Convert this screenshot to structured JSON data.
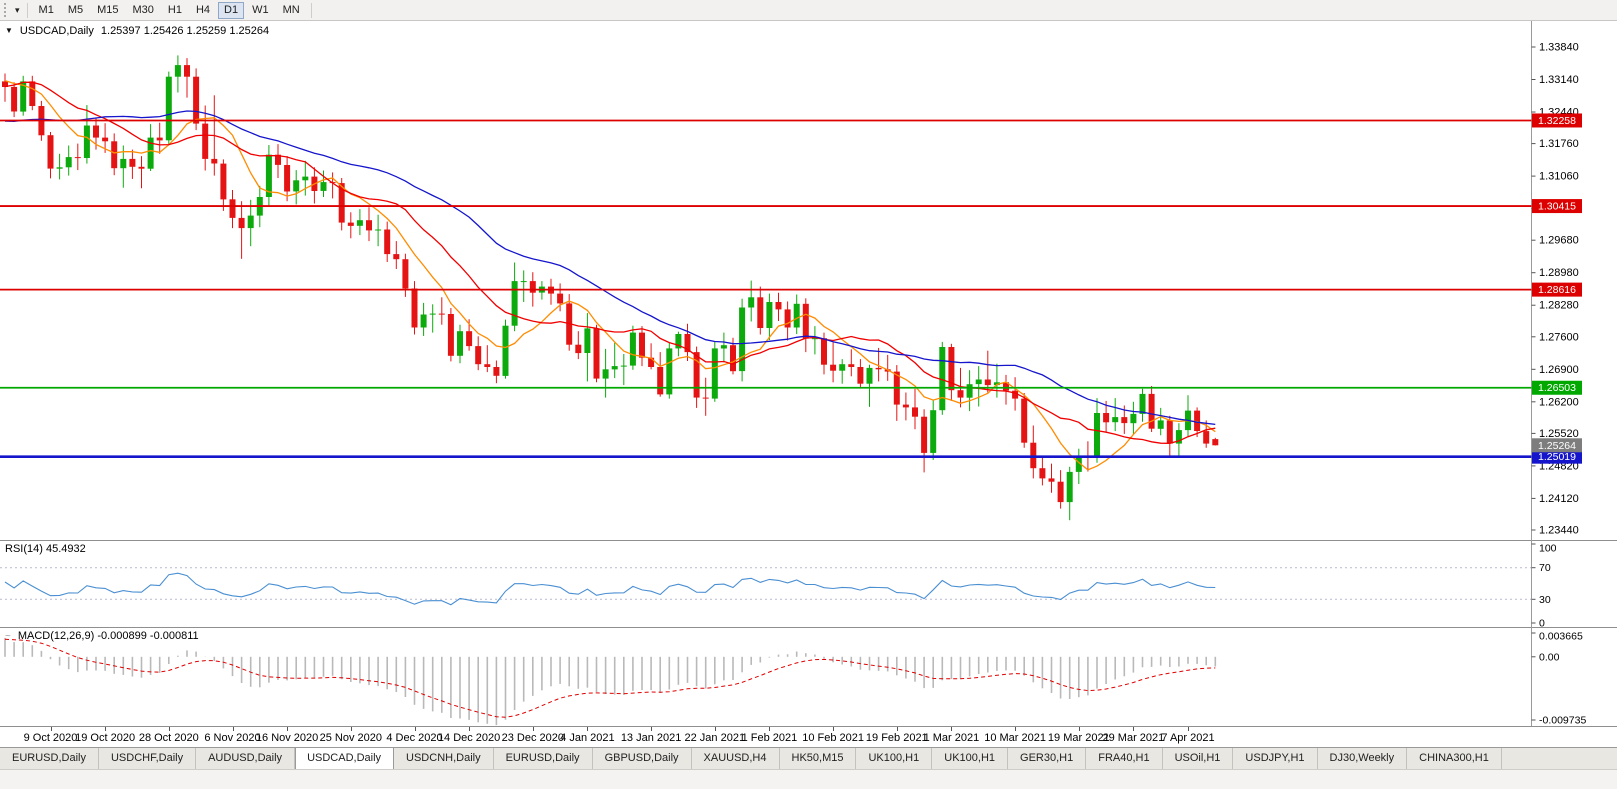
{
  "toolbar": {
    "timeframes": [
      "M1",
      "M5",
      "M15",
      "M30",
      "H1",
      "H4",
      "D1",
      "W1",
      "MN"
    ],
    "active_timeframe": "D1",
    "dropdown_icon": "▾"
  },
  "chart": {
    "title": "USDCAD,Daily",
    "ohlc_line": "1.25397 1.25426 1.25259 1.25264",
    "collapse_icon": "▼",
    "price_axis_labels": [
      "1.33840",
      "1.33140",
      "1.32440",
      "1.31760",
      "1.31060",
      "1.30360",
      "1.29680",
      "1.28980",
      "1.28280",
      "1.27600",
      "1.26900",
      "1.26200",
      "1.25520",
      "1.24820",
      "1.24120",
      "1.23440"
    ],
    "levels": [
      {
        "label": "1.32258",
        "value": 1.32258,
        "color": "#dd0000",
        "type": "resistance",
        "thick": false
      },
      {
        "label": "1.30415",
        "value": 1.30415,
        "color": "#dd0000",
        "type": "resistance",
        "thick": false
      },
      {
        "label": "1.28616",
        "value": 1.28616,
        "color": "#dd0000",
        "type": "resistance",
        "thick": false
      },
      {
        "label": "1.26503",
        "value": 1.26503,
        "color": "#00a800",
        "type": "support",
        "thick": false
      },
      {
        "label": "1.25019",
        "value": 1.25019,
        "color": "#1515cc",
        "type": "support",
        "thick": true
      }
    ],
    "bid_tag": {
      "label": "1.25264",
      "value": 1.25264,
      "color": "#7d7d7d"
    },
    "date_axis": [
      {
        "label": "9 Oct 2020",
        "index": 5
      },
      {
        "label": "19 Oct 2020",
        "index": 11
      },
      {
        "label": "28 Oct 2020",
        "index": 18
      },
      {
        "label": "6 Nov 2020",
        "index": 25
      },
      {
        "label": "16 Nov 2020",
        "index": 31
      },
      {
        "label": "25 Nov 2020",
        "index": 38
      },
      {
        "label": "4 Dec 2020",
        "index": 45
      },
      {
        "label": "14 Dec 2020",
        "index": 51
      },
      {
        "label": "23 Dec 2020",
        "index": 58
      },
      {
        "label": "4 Jan 2021",
        "index": 64
      },
      {
        "label": "13 Jan 2021",
        "index": 71
      },
      {
        "label": "22 Jan 2021",
        "index": 78
      },
      {
        "label": "1 Feb 2021",
        "index": 84
      },
      {
        "label": "10 Feb 2021",
        "index": 91
      },
      {
        "label": "19 Feb 2021",
        "index": 98
      },
      {
        "label": "1 Mar 2021",
        "index": 104
      },
      {
        "label": "10 Mar 2021",
        "index": 111
      },
      {
        "label": "19 Mar 2021",
        "index": 118
      },
      {
        "label": "29 Mar 2021",
        "index": 124
      },
      {
        "label": "7 Apr 2021",
        "index": 130
      }
    ]
  },
  "indicators": {
    "rsi": {
      "label": "RSI(14) 45.4932",
      "period": 14,
      "scale_labels": [
        "100",
        "70",
        "30",
        "0"
      ],
      "levels": [
        70,
        30
      ],
      "color": "#4a8fd2"
    },
    "macd": {
      "label": "MACD(12,26,9) -0.000899 -0.000811",
      "fast": 12,
      "slow": 26,
      "signal": 9,
      "scale_max": 0.003665,
      "scale_min": -0.009735,
      "scale_labels": [
        "0.003665",
        "0.00",
        "-0.009735"
      ],
      "hist_color": "#b9b9b9",
      "signal_color": "#e00000",
      "icon": "~"
    }
  },
  "chart_data": {
    "type": "candlestick",
    "symbol": "USDCAD",
    "timeframe": "Daily",
    "up_color": "#0caa0c",
    "down_color": "#e51414",
    "seed_closes": [
      1.328,
      1.3255,
      1.323,
      1.3205,
      1.3182,
      1.316,
      1.3171,
      1.3155,
      1.3138,
      1.312,
      1.3105,
      1.309,
      1.311,
      1.313,
      1.3155,
      1.318,
      1.316,
      1.314,
      1.3165,
      1.319,
      1.322,
      1.325,
      1.328,
      1.331,
      1.334,
      1.3365,
      1.333,
      1.3295,
      1.334,
      1.3315,
      1.329,
      1.331,
      1.333,
      1.3316
    ],
    "candles": [
      [
        1.331,
        1.3327,
        1.3266,
        1.3298
      ],
      [
        1.3298,
        1.3308,
        1.3233,
        1.3245
      ],
      [
        1.3245,
        1.3322,
        1.3236,
        1.331
      ],
      [
        1.331,
        1.3322,
        1.3248,
        1.3257
      ],
      [
        1.3257,
        1.3268,
        1.3182,
        1.3194
      ],
      [
        1.3194,
        1.3201,
        1.3101,
        1.3122
      ],
      [
        1.3122,
        1.3154,
        1.3099,
        1.3125
      ],
      [
        1.3125,
        1.3172,
        1.3107,
        1.3147
      ],
      [
        1.3147,
        1.3176,
        1.3119,
        1.3145
      ],
      [
        1.3145,
        1.3259,
        1.3133,
        1.3215
      ],
      [
        1.3215,
        1.3232,
        1.3163,
        1.3189
      ],
      [
        1.3189,
        1.322,
        1.3156,
        1.3181
      ],
      [
        1.3181,
        1.3198,
        1.3108,
        1.3123
      ],
      [
        1.3123,
        1.3172,
        1.3081,
        1.3143
      ],
      [
        1.3143,
        1.3163,
        1.31,
        1.3126
      ],
      [
        1.3126,
        1.3149,
        1.308,
        1.3122
      ],
      [
        1.3122,
        1.3218,
        1.3117,
        1.3189
      ],
      [
        1.3189,
        1.3221,
        1.3154,
        1.3183
      ],
      [
        1.3183,
        1.3331,
        1.3175,
        1.332
      ],
      [
        1.332,
        1.3366,
        1.3286,
        1.3345
      ],
      [
        1.3345,
        1.336,
        1.3275,
        1.332
      ],
      [
        1.332,
        1.3338,
        1.3205,
        1.3219
      ],
      [
        1.3219,
        1.3258,
        1.3118,
        1.3143
      ],
      [
        1.3143,
        1.328,
        1.3107,
        1.3133
      ],
      [
        1.3133,
        1.3142,
        1.3031,
        1.3056
      ],
      [
        1.3056,
        1.3076,
        1.2994,
        1.3016
      ],
      [
        1.3016,
        1.3052,
        1.2928,
        1.2994
      ],
      [
        1.2994,
        1.3055,
        1.2955,
        1.3021
      ],
      [
        1.3021,
        1.3085,
        1.2996,
        1.3061
      ],
      [
        1.3061,
        1.3173,
        1.3042,
        1.3152
      ],
      [
        1.3152,
        1.3175,
        1.3102,
        1.313
      ],
      [
        1.313,
        1.3149,
        1.3052,
        1.3073
      ],
      [
        1.3073,
        1.3119,
        1.3045,
        1.3097
      ],
      [
        1.3097,
        1.3139,
        1.3064,
        1.3105
      ],
      [
        1.3105,
        1.3125,
        1.3047,
        1.3074
      ],
      [
        1.3074,
        1.3118,
        1.3061,
        1.3093
      ],
      [
        1.3093,
        1.3114,
        1.3058,
        1.3091
      ],
      [
        1.3091,
        1.3102,
        1.2989,
        1.3006
      ],
      [
        1.3006,
        1.3028,
        1.2972,
        1.2999
      ],
      [
        1.2999,
        1.3035,
        1.2979,
        1.3011
      ],
      [
        1.3011,
        1.3039,
        1.2966,
        1.2989
      ],
      [
        1.2989,
        1.3023,
        1.2955,
        1.2991
      ],
      [
        1.2991,
        1.3008,
        1.2921,
        1.2938
      ],
      [
        1.2938,
        1.2966,
        1.2906,
        1.2927
      ],
      [
        1.2927,
        1.2939,
        1.2846,
        1.2864
      ],
      [
        1.2864,
        1.288,
        1.2765,
        1.278
      ],
      [
        1.278,
        1.2833,
        1.2762,
        1.2808
      ],
      [
        1.2808,
        1.283,
        1.2769,
        1.281
      ],
      [
        1.281,
        1.2845,
        1.2786,
        1.2809
      ],
      [
        1.2809,
        1.2822,
        1.2707,
        1.2719
      ],
      [
        1.2719,
        1.2786,
        1.2703,
        1.2772
      ],
      [
        1.2772,
        1.2798,
        1.273,
        1.274
      ],
      [
        1.274,
        1.2761,
        1.2688,
        1.2701
      ],
      [
        1.2701,
        1.2742,
        1.2684,
        1.2695
      ],
      [
        1.2695,
        1.2709,
        1.266,
        1.2676
      ],
      [
        1.2676,
        1.2797,
        1.267,
        1.2784
      ],
      [
        1.2784,
        1.292,
        1.2772,
        1.288
      ],
      [
        1.288,
        1.2903,
        1.2835,
        1.288
      ],
      [
        1.288,
        1.2899,
        1.2825,
        1.2855
      ],
      [
        1.2855,
        1.288,
        1.284,
        1.2868
      ],
      [
        1.2868,
        1.2885,
        1.2829,
        1.2853
      ],
      [
        1.2853,
        1.2875,
        1.2815,
        1.2832
      ],
      [
        1.2832,
        1.2852,
        1.273,
        1.2743
      ],
      [
        1.2743,
        1.2772,
        1.2712,
        1.2725
      ],
      [
        1.2725,
        1.2811,
        1.2664,
        1.2778
      ],
      [
        1.2778,
        1.2786,
        1.2662,
        1.267
      ],
      [
        1.267,
        1.2734,
        1.2629,
        1.269
      ],
      [
        1.269,
        1.2747,
        1.2671,
        1.2697
      ],
      [
        1.2697,
        1.2723,
        1.2656,
        1.2698
      ],
      [
        1.2698,
        1.2784,
        1.2689,
        1.2769
      ],
      [
        1.2769,
        1.2783,
        1.2697,
        1.2715
      ],
      [
        1.2715,
        1.2746,
        1.269,
        1.2695
      ],
      [
        1.2695,
        1.2727,
        1.2631,
        1.2636
      ],
      [
        1.2636,
        1.2747,
        1.2627,
        1.2735
      ],
      [
        1.2735,
        1.2771,
        1.2718,
        1.2766
      ],
      [
        1.2766,
        1.2788,
        1.2708,
        1.2727
      ],
      [
        1.2727,
        1.2739,
        1.2607,
        1.2629
      ],
      [
        1.2629,
        1.2672,
        1.259,
        1.2627
      ],
      [
        1.2627,
        1.275,
        1.262,
        1.2735
      ],
      [
        1.2735,
        1.2769,
        1.2705,
        1.2742
      ],
      [
        1.2742,
        1.2758,
        1.2679,
        1.2686
      ],
      [
        1.2686,
        1.2842,
        1.2664,
        1.2823
      ],
      [
        1.2823,
        1.2881,
        1.2793,
        1.2845
      ],
      [
        1.2845,
        1.2868,
        1.2765,
        1.2779
      ],
      [
        1.2779,
        1.2853,
        1.2753,
        1.2835
      ],
      [
        1.2835,
        1.2855,
        1.2794,
        1.2819
      ],
      [
        1.2819,
        1.2836,
        1.2752,
        1.278
      ],
      [
        1.278,
        1.2851,
        1.2766,
        1.2831
      ],
      [
        1.2831,
        1.2843,
        1.2727,
        1.2756
      ],
      [
        1.2756,
        1.2783,
        1.2722,
        1.2757
      ],
      [
        1.2757,
        1.2769,
        1.2679,
        1.27
      ],
      [
        1.27,
        1.2748,
        1.2662,
        1.2687
      ],
      [
        1.2687,
        1.2712,
        1.2659,
        1.2701
      ],
      [
        1.2701,
        1.2733,
        1.2675,
        1.2695
      ],
      [
        1.2695,
        1.2712,
        1.265,
        1.2659
      ],
      [
        1.2659,
        1.27,
        1.2609,
        1.2693
      ],
      [
        1.2693,
        1.2736,
        1.2664,
        1.269
      ],
      [
        1.269,
        1.2721,
        1.2665,
        1.2685
      ],
      [
        1.2685,
        1.2699,
        1.2579,
        1.2614
      ],
      [
        1.2614,
        1.264,
        1.258,
        1.2608
      ],
      [
        1.2608,
        1.2648,
        1.2561,
        1.2588
      ],
      [
        1.2588,
        1.2604,
        1.2468,
        1.251
      ],
      [
        1.251,
        1.2625,
        1.2495,
        1.2602
      ],
      [
        1.2602,
        1.2749,
        1.2592,
        1.2738
      ],
      [
        1.2738,
        1.2745,
        1.2622,
        1.2645
      ],
      [
        1.2645,
        1.2693,
        1.2608,
        1.2629
      ],
      [
        1.2629,
        1.2688,
        1.26,
        1.2658
      ],
      [
        1.2658,
        1.2697,
        1.261,
        1.2668
      ],
      [
        1.2668,
        1.273,
        1.264,
        1.2656
      ],
      [
        1.2656,
        1.2702,
        1.2629,
        1.2662
      ],
      [
        1.2662,
        1.2678,
        1.2614,
        1.2644
      ],
      [
        1.2644,
        1.2673,
        1.2601,
        1.2627
      ],
      [
        1.2627,
        1.2639,
        1.2521,
        1.2532
      ],
      [
        1.2532,
        1.2569,
        1.2455,
        1.2477
      ],
      [
        1.2477,
        1.25,
        1.244,
        1.2455
      ],
      [
        1.2455,
        1.2487,
        1.2424,
        1.2448
      ],
      [
        1.2448,
        1.2473,
        1.239,
        1.2404
      ],
      [
        1.2404,
        1.248,
        1.2365,
        1.2469
      ],
      [
        1.2469,
        1.2519,
        1.2443,
        1.2502
      ],
      [
        1.2502,
        1.2535,
        1.247,
        1.2501
      ],
      [
        1.2501,
        1.2628,
        1.2489,
        1.2596
      ],
      [
        1.2596,
        1.2622,
        1.2556,
        1.2576
      ],
      [
        1.2576,
        1.2628,
        1.2557,
        1.2587
      ],
      [
        1.2587,
        1.2612,
        1.2551,
        1.2574
      ],
      [
        1.2574,
        1.262,
        1.255,
        1.2594
      ],
      [
        1.2594,
        1.2648,
        1.2577,
        1.2637
      ],
      [
        1.2637,
        1.2654,
        1.2555,
        1.2562
      ],
      [
        1.2562,
        1.2607,
        1.2548,
        1.258
      ],
      [
        1.258,
        1.259,
        1.2499,
        1.253
      ],
      [
        1.253,
        1.2574,
        1.2503,
        1.2559
      ],
      [
        1.2559,
        1.2634,
        1.2544,
        1.2601
      ],
      [
        1.2601,
        1.2608,
        1.2544,
        1.2557
      ],
      [
        1.2557,
        1.258,
        1.2521,
        1.253
      ],
      [
        1.25397,
        1.25426,
        1.25259,
        1.25264
      ]
    ],
    "moving_averages": [
      {
        "period": 8,
        "color": "#ff8c00"
      },
      {
        "period": 16,
        "color": "#f00000"
      },
      {
        "period": 34,
        "color": "#1515cc"
      }
    ]
  },
  "tabs": {
    "items": [
      "EURUSD,Daily",
      "USDCHF,Daily",
      "AUDUSD,Daily",
      "USDCAD,Daily",
      "USDCNH,Daily",
      "EURUSD,Daily",
      "GBPUSD,Daily",
      "XAUUSD,H4",
      "HK50,M15",
      "UK100,H1",
      "UK100,H1",
      "GER30,H1",
      "FRA40,H1",
      "USOil,H1",
      "USDJPY,H1",
      "DJ30,Weekly",
      "CHINA300,H1"
    ],
    "active_index": 3
  }
}
